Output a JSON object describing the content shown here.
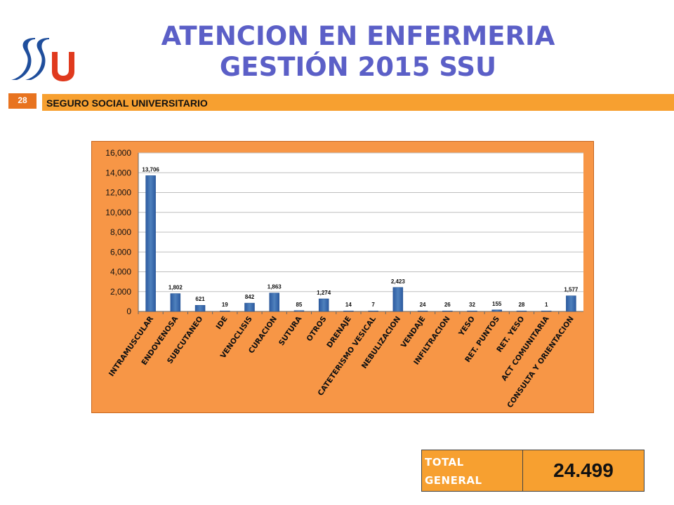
{
  "slide": {
    "title_line1": "ATENCION EN ENFERMERIA",
    "title_line2": "GESTIÓN 2015 SSU",
    "page_number": "28",
    "band_text": "SEGURO SOCIAL UNIVERSITARIO"
  },
  "total": {
    "label": "TOTAL GENERAL",
    "value": "24.499"
  },
  "colors": {
    "title": "#5b5fc7",
    "accent_orange": "#f7a030",
    "chart_frame": "#f79646",
    "bar_blue": "#4f81bd",
    "logo_blue": "#1f4e9c",
    "logo_red": "#e03a1e"
  },
  "chart_data": {
    "type": "bar",
    "title": "",
    "xlabel": "",
    "ylabel": "",
    "ylim": [
      0,
      16000
    ],
    "yticks": [
      "0",
      "2,000",
      "4,000",
      "6,000",
      "8,000",
      "10,000",
      "12,000",
      "14,000",
      "16,000"
    ],
    "grid": true,
    "legend": "none",
    "categories": [
      "INTRAMUSCULAR",
      "ENDOVENOSA",
      "SUBCUTANEO",
      "IDE",
      "VENOCLISIS",
      "CURACION",
      "SUTURA",
      "OTROS",
      "DRENAJE",
      "CATETERISMO VESICAL",
      "NEBULIZACION",
      "VENDAJE",
      "INFILTRACION",
      "YESO",
      "RET. PUNTOS",
      "RET. YESO",
      "ACT COMUNITARIA",
      "CONSULTA  Y ORIENTACION"
    ],
    "values": [
      13706,
      1802,
      621,
      19,
      842,
      1863,
      85,
      1274,
      14,
      7,
      2423,
      24,
      26,
      32,
      155,
      28,
      1,
      1577
    ],
    "data_labels": [
      "13,706",
      "1,802",
      "621",
      "19",
      "842",
      "1,863",
      "85",
      "1,274",
      "14",
      "7",
      "2,423",
      "24",
      "26",
      "32",
      "155",
      "28",
      "1",
      "1,577"
    ]
  }
}
